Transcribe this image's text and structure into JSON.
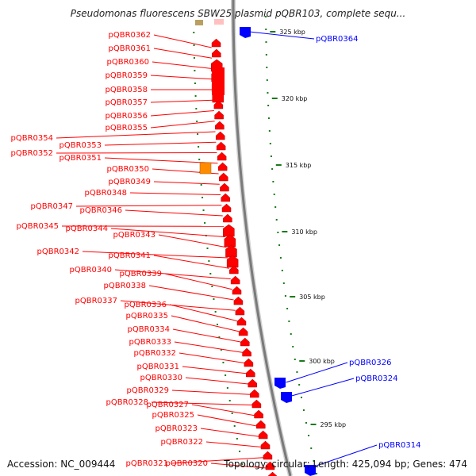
{
  "header": {
    "title": "Pseudomonas fluorescens SBW25 plasmid pQBR103, complete sequ..."
  },
  "footer": {
    "accession": "Accession: NC_009444",
    "topology": "Topology: circular; Length: 425,094 bp; Genes: 474"
  },
  "colors": {
    "forward_gene": "#ff0000",
    "reverse_gene": "#0000ff",
    "highlight_gene": "#ff8c00",
    "backbone": "#7a7a7a",
    "tick": "#1a7a1a"
  },
  "scale_labels": [
    "325 kbp",
    "320 kbp",
    "315 kbp",
    "310 kbp",
    "305 kbp",
    "300 kbp",
    "295 kbp"
  ],
  "left_genes": [
    "pQBR0362",
    "pQBR0361",
    "pQBR0360",
    "pQBR0359",
    "pQBR0358",
    "pQBR0357",
    "pQBR0356",
    "pQBR0355",
    "pQBR0354",
    "pQBR0353",
    "pQBR0352",
    "pQBR0351",
    "pQBR0350",
    "pQBR0349",
    "pQBR0348",
    "pQBR0347",
    "pQBR0346",
    "pQBR0345",
    "pQBR0344",
    "pQBR0343",
    "pQBR0342",
    "pQBR0341",
    "pQBR0340",
    "pQBR0339",
    "pQBR0338",
    "pQBR0337",
    "pQBR0336",
    "pQBR0335",
    "pQBR0334",
    "pQBR0333",
    "pQBR0332",
    "pQBR0331",
    "pQBR0330",
    "pQBR0329",
    "pQBR0328",
    "pQBR0327",
    "pQBR0325",
    "pQBR0323",
    "pQBR0322",
    "pQBR0321",
    "pQBR0320"
  ],
  "right_genes": [
    "pQBR0364",
    "pQBR0326",
    "pQBR0324",
    "pQBR0314"
  ]
}
